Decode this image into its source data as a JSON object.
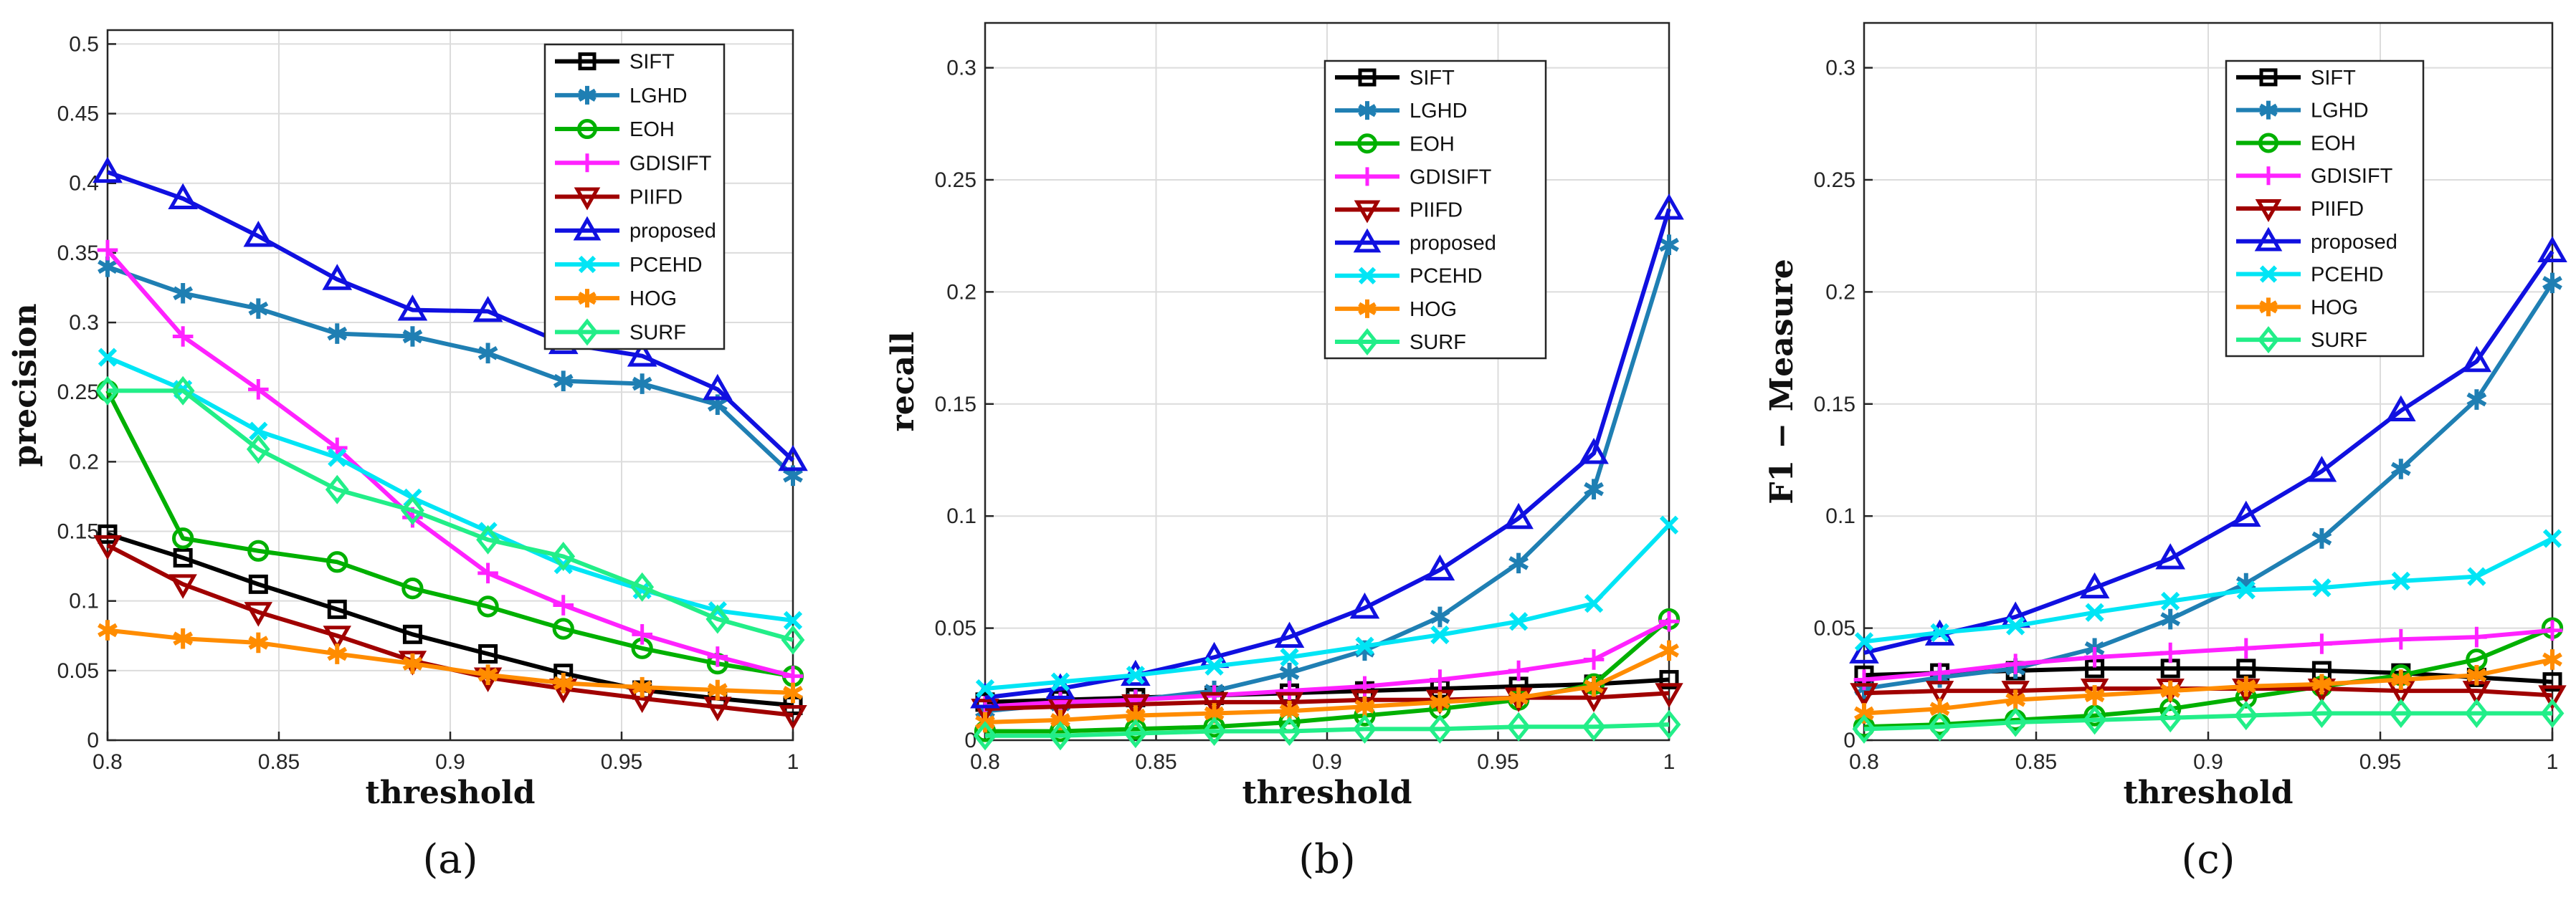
{
  "x_ticks": [
    0.8,
    0.85,
    0.9,
    0.95,
    1
  ],
  "x_tick_labels": [
    "0.8",
    "0.85",
    "0.9",
    "0.95",
    "1"
  ],
  "series_styles": [
    {
      "name": "SIFT",
      "color": "#000000",
      "marker": "square"
    },
    {
      "name": "LGHD",
      "color": "#1f7fb3",
      "marker": "star"
    },
    {
      "name": "EOH",
      "color": "#00b000",
      "marker": "circle"
    },
    {
      "name": "GDISIFT",
      "color": "#ff22ff",
      "marker": "plus"
    },
    {
      "name": "PIIFD",
      "color": "#a00000",
      "marker": "triangle-down"
    },
    {
      "name": "proposed",
      "color": "#1010e0",
      "marker": "triangle-up"
    },
    {
      "name": "PCEHD",
      "color": "#00e5f5",
      "marker": "x"
    },
    {
      "name": "HOG",
      "color": "#ff8c00",
      "marker": "star"
    },
    {
      "name": "SURF",
      "color": "#22ee88",
      "marker": "diamond"
    }
  ],
  "chart_data": [
    {
      "type": "line",
      "panel_label": "(a)",
      "xlabel": "threshold",
      "ylabel": "precision",
      "xlim": [
        0.8,
        1
      ],
      "ylim": [
        0,
        0.51
      ],
      "y_ticks": [
        0,
        0.05,
        0.1,
        0.15,
        0.2,
        0.25,
        0.3,
        0.35,
        0.4,
        0.45,
        0.5
      ],
      "y_tick_labels": [
        "0",
        "0.05",
        "0.1",
        "0.15",
        "0.2",
        "0.25",
        "0.3",
        "0.35",
        "0.4",
        "0.45",
        "0.5"
      ],
      "grid": true,
      "legend_position": "top-right",
      "x": [
        0.8,
        0.822,
        0.844,
        0.867,
        0.889,
        0.911,
        0.933,
        0.956,
        0.978,
        1.0
      ],
      "series": [
        {
          "name": "SIFT",
          "values": [
            0.148,
            0.131,
            0.112,
            0.094,
            0.076,
            0.062,
            0.048,
            0.036,
            0.03,
            0.025
          ]
        },
        {
          "name": "LGHD",
          "values": [
            0.34,
            0.321,
            0.31,
            0.292,
            0.29,
            0.278,
            0.258,
            0.256,
            0.241,
            0.19
          ]
        },
        {
          "name": "EOH",
          "values": [
            0.251,
            0.145,
            0.136,
            0.128,
            0.109,
            0.096,
            0.08,
            0.066,
            0.055,
            0.046
          ]
        },
        {
          "name": "GDISIFT",
          "values": [
            0.352,
            0.29,
            0.252,
            0.21,
            0.16,
            0.12,
            0.097,
            0.076,
            0.06,
            0.046
          ]
        },
        {
          "name": "PIIFD",
          "values": [
            0.14,
            0.112,
            0.092,
            0.075,
            0.057,
            0.045,
            0.037,
            0.03,
            0.024,
            0.018
          ]
        },
        {
          "name": "proposed",
          "values": [
            0.408,
            0.389,
            0.362,
            0.331,
            0.309,
            0.308,
            0.285,
            0.276,
            0.252,
            0.201
          ]
        },
        {
          "name": "PCEHD",
          "values": [
            0.275,
            0.252,
            0.222,
            0.203,
            0.174,
            0.15,
            0.126,
            0.108,
            0.093,
            0.086
          ]
        },
        {
          "name": "HOG",
          "values": [
            0.079,
            0.073,
            0.07,
            0.062,
            0.055,
            0.047,
            0.041,
            0.038,
            0.036,
            0.034
          ]
        },
        {
          "name": "SURF",
          "values": [
            0.251,
            0.251,
            0.209,
            0.18,
            0.165,
            0.144,
            0.132,
            0.11,
            0.087,
            0.072
          ]
        }
      ]
    },
    {
      "type": "line",
      "panel_label": "(b)",
      "xlabel": "threshold",
      "ylabel": "recall",
      "xlim": [
        0.8,
        1
      ],
      "ylim": [
        0,
        0.32
      ],
      "y_ticks": [
        0,
        0.05,
        0.1,
        0.15,
        0.2,
        0.25,
        0.3
      ],
      "y_tick_labels": [
        "0",
        "0.05",
        "0.1",
        "0.15",
        "0.2",
        "0.25",
        "0.3"
      ],
      "grid": true,
      "legend_position": "top-right",
      "x": [
        0.8,
        0.822,
        0.844,
        0.867,
        0.889,
        0.911,
        0.933,
        0.956,
        0.978,
        1.0
      ],
      "series": [
        {
          "name": "SIFT",
          "values": [
            0.017,
            0.018,
            0.019,
            0.02,
            0.021,
            0.022,
            0.023,
            0.024,
            0.025,
            0.027
          ]
        },
        {
          "name": "LGHD",
          "values": [
            0.013,
            0.016,
            0.018,
            0.022,
            0.03,
            0.04,
            0.055,
            0.079,
            0.112,
            0.221
          ]
        },
        {
          "name": "EOH",
          "values": [
            0.004,
            0.004,
            0.005,
            0.006,
            0.008,
            0.011,
            0.014,
            0.018,
            0.025,
            0.054
          ]
        },
        {
          "name": "GDISIFT",
          "values": [
            0.015,
            0.017,
            0.018,
            0.02,
            0.022,
            0.024,
            0.027,
            0.031,
            0.036,
            0.053
          ]
        },
        {
          "name": "PIIFD",
          "values": [
            0.014,
            0.015,
            0.016,
            0.017,
            0.017,
            0.018,
            0.018,
            0.019,
            0.019,
            0.021
          ]
        },
        {
          "name": "proposed",
          "values": [
            0.019,
            0.023,
            0.029,
            0.037,
            0.046,
            0.059,
            0.076,
            0.099,
            0.128,
            0.237
          ]
        },
        {
          "name": "PCEHD",
          "values": [
            0.023,
            0.026,
            0.029,
            0.033,
            0.037,
            0.042,
            0.047,
            0.053,
            0.061,
            0.096
          ]
        },
        {
          "name": "HOG",
          "values": [
            0.008,
            0.009,
            0.011,
            0.012,
            0.013,
            0.015,
            0.017,
            0.019,
            0.024,
            0.04
          ]
        },
        {
          "name": "SURF",
          "values": [
            0.002,
            0.002,
            0.003,
            0.004,
            0.004,
            0.005,
            0.005,
            0.006,
            0.006,
            0.007
          ]
        }
      ]
    },
    {
      "type": "line",
      "panel_label": "(c)",
      "xlabel": "threshold",
      "ylabel": "F1 − Measure",
      "xlim": [
        0.8,
        1
      ],
      "ylim": [
        0,
        0.32
      ],
      "y_ticks": [
        0,
        0.05,
        0.1,
        0.15,
        0.2,
        0.25,
        0.3
      ],
      "y_tick_labels": [
        "0",
        "0.05",
        "0.1",
        "0.15",
        "0.2",
        "0.25",
        "0.3"
      ],
      "grid": true,
      "legend_position": "top-right",
      "x": [
        0.8,
        0.822,
        0.844,
        0.867,
        0.889,
        0.911,
        0.933,
        0.956,
        0.978,
        1.0
      ],
      "series": [
        {
          "name": "SIFT",
          "values": [
            0.029,
            0.03,
            0.031,
            0.032,
            0.032,
            0.032,
            0.031,
            0.03,
            0.028,
            0.026
          ]
        },
        {
          "name": "LGHD",
          "values": [
            0.023,
            0.028,
            0.032,
            0.041,
            0.054,
            0.07,
            0.09,
            0.121,
            0.152,
            0.204
          ]
        },
        {
          "name": "EOH",
          "values": [
            0.006,
            0.007,
            0.009,
            0.011,
            0.014,
            0.019,
            0.024,
            0.029,
            0.036,
            0.05
          ]
        },
        {
          "name": "GDISIFT",
          "values": [
            0.027,
            0.03,
            0.034,
            0.037,
            0.039,
            0.041,
            0.043,
            0.045,
            0.046,
            0.049
          ]
        },
        {
          "name": "PIIFD",
          "values": [
            0.021,
            0.022,
            0.022,
            0.023,
            0.023,
            0.023,
            0.023,
            0.022,
            0.022,
            0.02
          ]
        },
        {
          "name": "proposed",
          "values": [
            0.039,
            0.047,
            0.055,
            0.068,
            0.081,
            0.1,
            0.12,
            0.147,
            0.169,
            0.218
          ]
        },
        {
          "name": "PCEHD",
          "values": [
            0.044,
            0.048,
            0.051,
            0.057,
            0.062,
            0.067,
            0.068,
            0.071,
            0.073,
            0.09
          ]
        },
        {
          "name": "HOG",
          "values": [
            0.012,
            0.014,
            0.018,
            0.02,
            0.022,
            0.024,
            0.025,
            0.027,
            0.029,
            0.036
          ]
        },
        {
          "name": "SURF",
          "values": [
            0.005,
            0.006,
            0.008,
            0.009,
            0.01,
            0.011,
            0.012,
            0.012,
            0.012,
            0.012
          ]
        }
      ]
    }
  ]
}
